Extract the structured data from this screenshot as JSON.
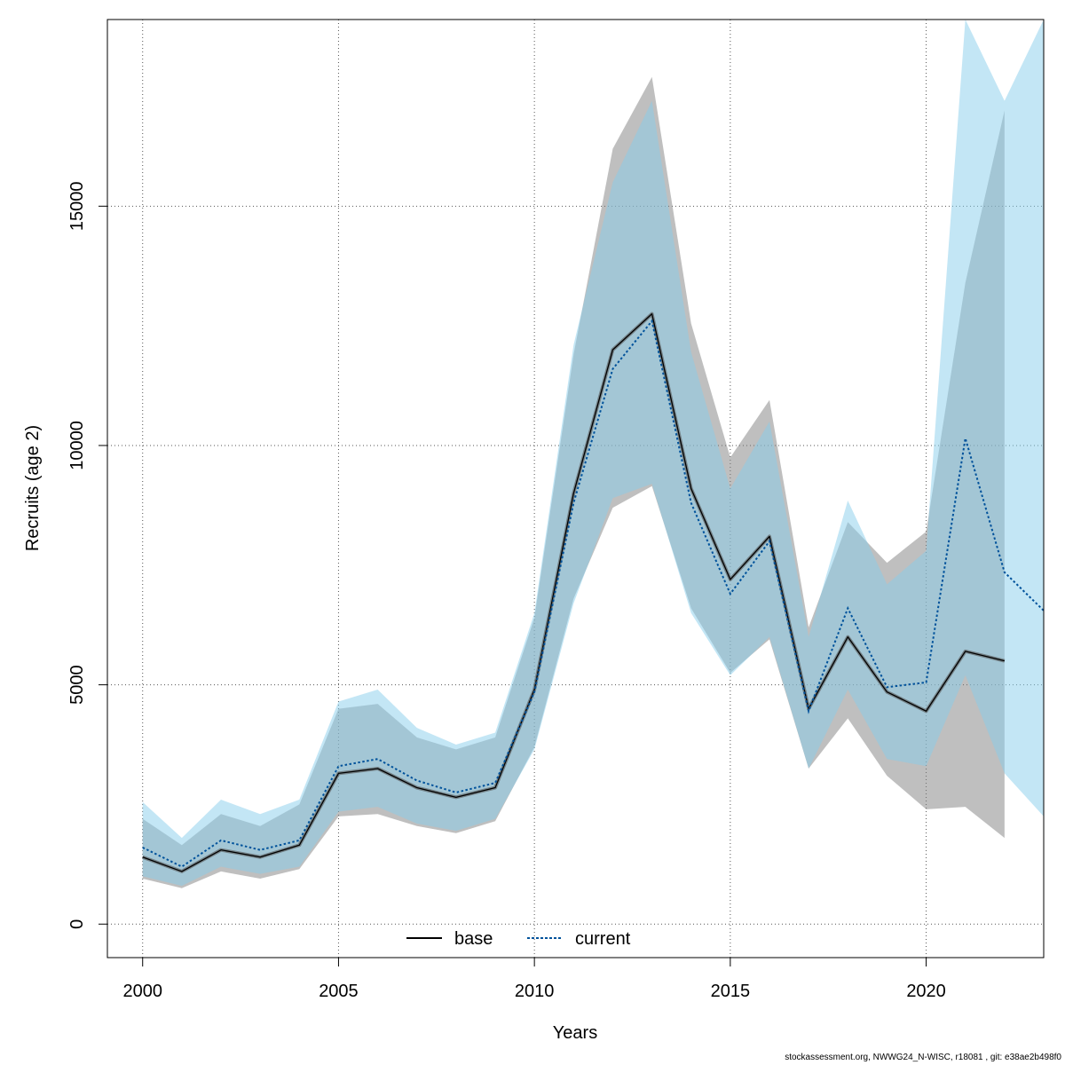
{
  "chart_data": {
    "type": "line",
    "title": "",
    "xlabel": "Years",
    "ylabel": "Recruits (age 2)",
    "xlim": [
      1999.1,
      2023
    ],
    "ylim": [
      -700,
      18900
    ],
    "xticks": [
      2000,
      2005,
      2010,
      2015,
      2020
    ],
    "yticks": [
      0,
      5000,
      10000,
      15000
    ],
    "grid": true,
    "legend_position": "bottom-center",
    "series": [
      {
        "name": "base",
        "style": "solid",
        "line_color": "#000000",
        "band_color": "#808080",
        "x": [
          2000,
          2001,
          2002,
          2003,
          2004,
          2005,
          2006,
          2007,
          2008,
          2009,
          2010,
          2011,
          2012,
          2013,
          2014,
          2015,
          2016,
          2017,
          2018,
          2019,
          2020,
          2021,
          2022
        ],
        "values": [
          1400,
          1100,
          1550,
          1400,
          1650,
          3150,
          3250,
          2850,
          2650,
          2850,
          4900,
          9000,
          12000,
          12750,
          9100,
          7200,
          8100,
          4500,
          6000,
          4850,
          4450,
          5700,
          5500
        ],
        "lower": [
          950,
          750,
          1100,
          950,
          1150,
          2250,
          2300,
          2050,
          1900,
          2150,
          3700,
          6800,
          8700,
          9150,
          6600,
          5250,
          5950,
          3250,
          4300,
          3100,
          2400,
          2450,
          1800
        ],
        "upper": [
          2200,
          1650,
          2300,
          2050,
          2500,
          4500,
          4600,
          3900,
          3650,
          3900,
          6400,
          11900,
          16200,
          17700,
          12550,
          9750,
          10950,
          6200,
          8400,
          7550,
          8200,
          13400,
          17000
        ]
      },
      {
        "name": "current",
        "style": "dotted",
        "line_color": "#00529b",
        "band_color": "#87ceeb",
        "x": [
          2000,
          2001,
          2002,
          2003,
          2004,
          2005,
          2006,
          2007,
          2008,
          2009,
          2010,
          2011,
          2012,
          2013,
          2014,
          2015,
          2016,
          2017,
          2018,
          2019,
          2020,
          2021,
          2022,
          2023
        ],
        "values": [
          1600,
          1200,
          1750,
          1550,
          1750,
          3300,
          3450,
          3000,
          2750,
          2950,
          4850,
          8800,
          11600,
          12600,
          8800,
          6900,
          8000,
          4450,
          6600,
          4950,
          5050,
          10150,
          7350,
          6550
        ],
        "lower": [
          1000,
          800,
          1200,
          1050,
          1200,
          2350,
          2450,
          2100,
          1950,
          2200,
          3650,
          6700,
          8900,
          9200,
          6500,
          5200,
          6000,
          3250,
          4900,
          3450,
          3300,
          5200,
          3150,
          2250
        ],
        "upper": [
          2550,
          1800,
          2600,
          2300,
          2600,
          4650,
          4900,
          4100,
          3750,
          4000,
          6500,
          12100,
          15500,
          17200,
          11950,
          9100,
          10500,
          6000,
          8850,
          7100,
          7800,
          18900,
          17200,
          18900
        ]
      }
    ]
  },
  "footer": "stockassessment.org, NWWG24_N-WISC, r18081 , git: e38ae2b498f0"
}
